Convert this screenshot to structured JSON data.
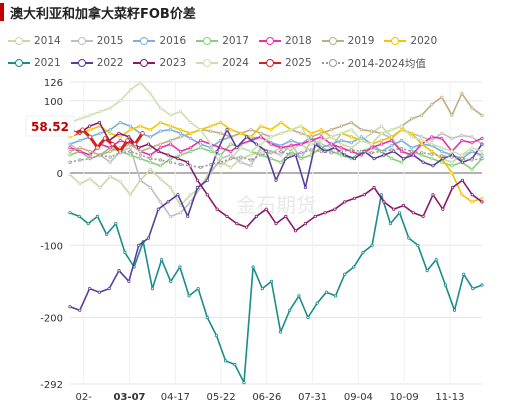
{
  "title": "澳大利亚和加拿大菜籽FOB价差",
  "watermark": "金石期货",
  "chart_data": {
    "type": "line",
    "title": "澳大利亚和加拿大菜籽FOB价差",
    "xlabel": "",
    "ylabel": "",
    "ylim": [
      -292,
      126
    ],
    "y_ticks": [
      126,
      100,
      0,
      -100,
      -200,
      -292
    ],
    "x_tick_labels": [
      "02-",
      "03-07",
      "04-17",
      "05-22",
      "06-26",
      "07-31",
      "09-04",
      "10-09",
      "11-13"
    ],
    "highlight_x_label": "03-07",
    "highlight_value_label": "58.52",
    "grid": true,
    "legend_position": "top",
    "series": [
      {
        "name": "2014",
        "color": "#c9d9a6",
        "values": [
          -2,
          -15,
          -8,
          -20,
          -5,
          -12,
          -30,
          -10,
          5,
          -8,
          -20,
          -45,
          -30,
          -20,
          5,
          15,
          8,
          20,
          25,
          30,
          28,
          35,
          32,
          40,
          30,
          45,
          50,
          40,
          35,
          45,
          55,
          65,
          50,
          30,
          25,
          40,
          30,
          20,
          15,
          25,
          30,
          22
        ]
      },
      {
        "name": "2015",
        "color": "#bfbfbf",
        "values": [
          40,
          30,
          20,
          25,
          15,
          30,
          35,
          -10,
          -20,
          -40,
          -60,
          -55,
          -40,
          -20,
          0,
          20,
          25,
          15,
          10,
          35,
          30,
          25,
          40,
          20,
          45,
          40,
          35,
          55,
          50,
          45,
          40,
          55,
          48,
          60,
          55,
          50,
          45,
          55,
          48,
          52,
          50,
          40
        ]
      },
      {
        "name": "2016",
        "color": "#7ab0de",
        "values": [
          40,
          45,
          50,
          55,
          60,
          70,
          65,
          55,
          50,
          58,
          60,
          55,
          48,
          40,
          35,
          45,
          50,
          55,
          48,
          50,
          42,
          38,
          45,
          40,
          50,
          35,
          40,
          45,
          42,
          50,
          40,
          30,
          38,
          45,
          35,
          40,
          38,
          30,
          25,
          20,
          30,
          25
        ]
      },
      {
        "name": "2017",
        "color": "#86d07a",
        "values": [
          25,
          30,
          20,
          25,
          35,
          30,
          25,
          20,
          15,
          10,
          20,
          25,
          30,
          35,
          30,
          25,
          40,
          35,
          30,
          25,
          20,
          15,
          30,
          20,
          25,
          35,
          30,
          25,
          20,
          30,
          35,
          30,
          20,
          15,
          30,
          25,
          20,
          15,
          10,
          15,
          5,
          20
        ]
      },
      {
        "name": "2018",
        "color": "#ee2ea9",
        "values": [
          35,
          30,
          25,
          40,
          35,
          45,
          40,
          30,
          25,
          35,
          40,
          30,
          35,
          45,
          40,
          35,
          30,
          40,
          45,
          50,
          40,
          35,
          38,
          40,
          45,
          50,
          40,
          35,
          30,
          25,
          35,
          40,
          45,
          30,
          25,
          40,
          50,
          48,
          30,
          45,
          42,
          48
        ]
      },
      {
        "name": "2019",
        "color": "#bfae85",
        "values": [
          30,
          35,
          30,
          25,
          30,
          35,
          40,
          30,
          35,
          40,
          45,
          50,
          55,
          60,
          58,
          55,
          50,
          55,
          60,
          55,
          50,
          55,
          60,
          55,
          50,
          55,
          60,
          65,
          70,
          60,
          58,
          55,
          60,
          65,
          75,
          80,
          95,
          105,
          80,
          110,
          90,
          80
        ]
      },
      {
        "name": "2020",
        "color": "#f2c500",
        "values": [
          50,
          55,
          60,
          65,
          55,
          50,
          60,
          65,
          60,
          70,
          65,
          60,
          55,
          60,
          65,
          70,
          60,
          55,
          50,
          65,
          60,
          70,
          60,
          65,
          55,
          60,
          50,
          55,
          50,
          45,
          40,
          45,
          50,
          60,
          55,
          40,
          30,
          20,
          0,
          -30,
          -40,
          -35
        ]
      },
      {
        "name": "2021",
        "color": "#1a8c8c",
        "values": [
          -55,
          -60,
          -70,
          -60,
          -85,
          -70,
          -110,
          -130,
          -95,
          -160,
          -120,
          -150,
          -130,
          -170,
          -160,
          -200,
          -225,
          -260,
          -265,
          -290,
          -130,
          -160,
          -150,
          -220,
          -190,
          -170,
          -200,
          -180,
          -165,
          -170,
          -140,
          -130,
          -110,
          -100,
          -30,
          -70,
          -55,
          -90,
          -100,
          -135,
          -120,
          -155,
          -190,
          -140,
          -160,
          -155
        ]
      },
      {
        "name": "2022",
        "color": "#5a3d9a",
        "values": [
          -185,
          -190,
          -160,
          -165,
          -160,
          -135,
          -150,
          -100,
          -90,
          -50,
          -40,
          -30,
          -60,
          -20,
          -10,
          30,
          60,
          35,
          50,
          40,
          30,
          -10,
          20,
          25,
          -20,
          40,
          30,
          35,
          25,
          20,
          30,
          20,
          25,
          30,
          20,
          25,
          15,
          10,
          20,
          25,
          15,
          20,
          40
        ]
      },
      {
        "name": "2023",
        "color": "#8a1a6a",
        "values": [
          60,
          55,
          65,
          70,
          45,
          55,
          50,
          35,
          40,
          30,
          25,
          20,
          15,
          -10,
          -30,
          -50,
          -60,
          -70,
          -75,
          -60,
          -50,
          -70,
          -60,
          -80,
          -70,
          -60,
          -55,
          -50,
          -40,
          -35,
          -30,
          -20,
          -40,
          -50,
          -45,
          -55,
          -60,
          -30,
          -50,
          -20,
          -10,
          -30,
          -40
        ]
      },
      {
        "name": "2024",
        "color": "#cbe0b0",
        "values": [
          70,
          75,
          80,
          85,
          90,
          100,
          115,
          125,
          110,
          90,
          80,
          85,
          70,
          60,
          40,
          10,
          20,
          35,
          30,
          40,
          50,
          55,
          60,
          65,
          40,
          45,
          50,
          55,
          60,
          45,
          40,
          55,
          60,
          65,
          50,
          45,
          40,
          35,
          30,
          25,
          35,
          30
        ]
      },
      {
        "name": "2025",
        "color": "#d62020",
        "values": [
          55,
          60,
          50,
          35,
          48,
          40,
          30,
          45,
          40,
          55
        ]
      },
      {
        "name": "2014-2024均值",
        "color": "#999999",
        "dashed": true,
        "values": [
          15,
          18,
          20,
          25,
          22,
          28,
          30,
          25,
          20,
          18,
          15,
          12,
          10,
          8,
          12,
          15,
          20,
          22,
          18,
          25,
          28,
          30,
          25,
          28,
          32,
          30,
          28,
          30,
          32,
          30,
          28,
          30,
          32,
          34,
          30,
          28,
          26,
          24,
          22,
          20,
          18,
          20
        ]
      }
    ]
  }
}
